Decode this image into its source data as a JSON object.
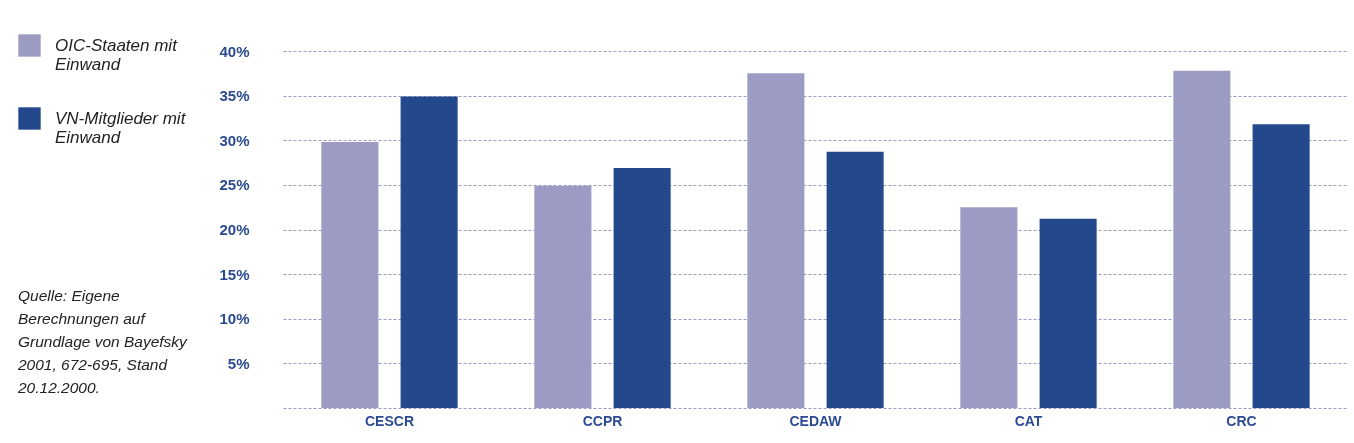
{
  "chart_data": {
    "type": "bar",
    "categories": [
      "CESCR",
      "CCPR",
      "CEDAW",
      "CAT",
      "CRC"
    ],
    "series": [
      {
        "name": "OIC-Staaten mit Einwand",
        "color": "#9b9bc4",
        "values": [
          29.8,
          24.9,
          37.5,
          22.5,
          37.8
        ]
      },
      {
        "name": "VN-Mitglieder mit Einwand",
        "color": "#23498c",
        "values": [
          34.9,
          26.9,
          28.7,
          21.2,
          31.8
        ]
      }
    ],
    "ylim": [
      0,
      40
    ],
    "yticks": [
      {
        "value": 0,
        "label": null
      },
      {
        "value": 5,
        "label": "5%"
      },
      {
        "value": 10,
        "label": "10%"
      },
      {
        "value": 15,
        "label": "15%"
      },
      {
        "value": 20,
        "label": "20%"
      },
      {
        "value": 25,
        "label": "25%"
      },
      {
        "value": 30,
        "label": "30%"
      },
      {
        "value": 35,
        "label": "35%"
      },
      {
        "value": 40,
        "label": "40%"
      }
    ],
    "grid": "y",
    "legend": "top left",
    "annotations": [
      "Quelle: Eigene Berechnungen auf Grundlage von Bayefsky 2001, 672-695, Stand 20.12.2000."
    ]
  }
}
